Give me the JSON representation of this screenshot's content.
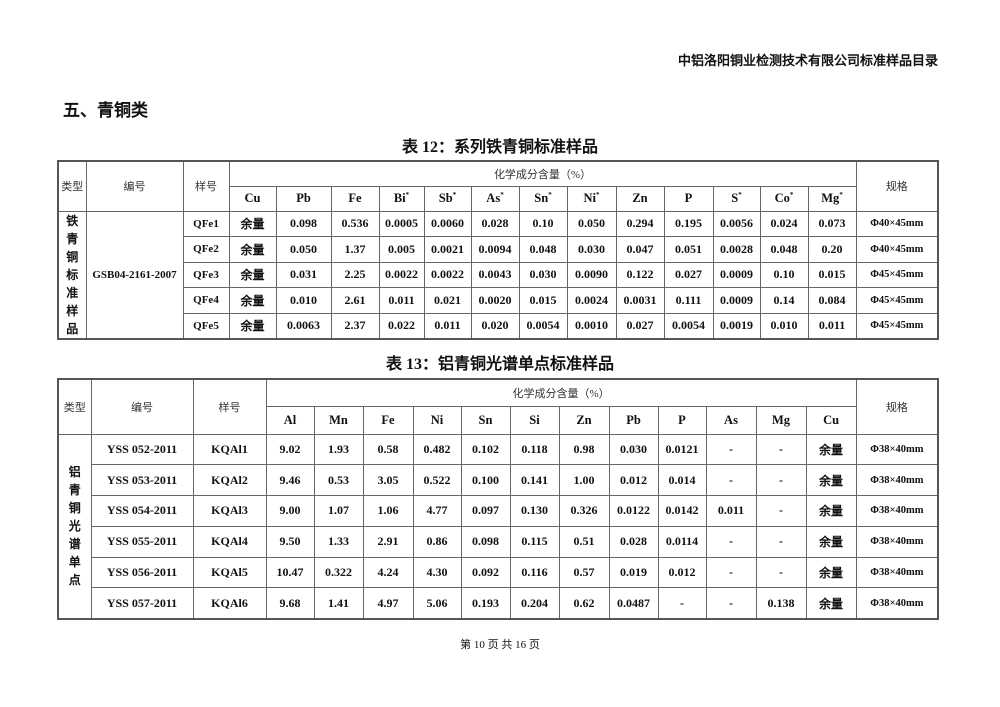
{
  "doc_header": "中铝洛阳铜业检测技术有限公司标准样品目录",
  "section_title": "五、青铜类",
  "table12": {
    "caption": "表 12：系列铁青铜标准样品",
    "h_type": "类型",
    "h_code": "编号",
    "h_sample": "样号",
    "h_group": "化学成分含量（%）",
    "h_spec": "规格",
    "elements": [
      {
        "el": "Cu",
        "mark": ""
      },
      {
        "el": "Pb",
        "mark": ""
      },
      {
        "el": "Fe",
        "mark": ""
      },
      {
        "el": "Bi",
        "mark": "*"
      },
      {
        "el": "Sb",
        "mark": "*"
      },
      {
        "el": "As",
        "mark": "*"
      },
      {
        "el": "Sn",
        "mark": "*"
      },
      {
        "el": "Ni",
        "mark": "*"
      },
      {
        "el": "Zn",
        "mark": ""
      },
      {
        "el": "P",
        "mark": ""
      },
      {
        "el": "S",
        "mark": "*"
      },
      {
        "el": "Co",
        "mark": "*"
      },
      {
        "el": "Mg",
        "mark": "*"
      }
    ],
    "type_label": "铁青铜标准样品",
    "code": "GSB04-2161-2007",
    "rows": [
      {
        "sample": "QFe1",
        "values": [
          "余量",
          "0.098",
          "0.536",
          "0.0005",
          "0.0060",
          "0.028",
          "0.10",
          "0.050",
          "0.294",
          "0.195",
          "0.0056",
          "0.024",
          "0.073"
        ],
        "spec": "Φ40×45mm"
      },
      {
        "sample": "QFe2",
        "values": [
          "余量",
          "0.050",
          "1.37",
          "0.005",
          "0.0021",
          "0.0094",
          "0.048",
          "0.030",
          "0.047",
          "0.051",
          "0.0028",
          "0.048",
          "0.20"
        ],
        "spec": "Φ40×45mm"
      },
      {
        "sample": "QFe3",
        "values": [
          "余量",
          "0.031",
          "2.25",
          "0.0022",
          "0.0022",
          "0.0043",
          "0.030",
          "0.0090",
          "0.122",
          "0.027",
          "0.0009",
          "0.10",
          "0.015"
        ],
        "spec": "Φ45×45mm"
      },
      {
        "sample": "QFe4",
        "values": [
          "余量",
          "0.010",
          "2.61",
          "0.011",
          "0.021",
          "0.0020",
          "0.015",
          "0.0024",
          "0.0031",
          "0.111",
          "0.0009",
          "0.14",
          "0.084"
        ],
        "spec": "Φ45×45mm"
      },
      {
        "sample": "QFe5",
        "values": [
          "余量",
          "0.0063",
          "2.37",
          "0.022",
          "0.011",
          "0.020",
          "0.0054",
          "0.0010",
          "0.027",
          "0.0054",
          "0.0019",
          "0.010",
          "0.011"
        ],
        "spec": "Φ45×45mm"
      }
    ]
  },
  "table13": {
    "caption": "表 13：铝青铜光谱单点标准样品",
    "h_type": "类型",
    "h_code": "编号",
    "h_sample": "样号",
    "h_group": "化学成分含量（%）",
    "h_spec": "规格",
    "elements": [
      {
        "el": "Al",
        "mark": ""
      },
      {
        "el": "Mn",
        "mark": ""
      },
      {
        "el": "Fe",
        "mark": ""
      },
      {
        "el": "Ni",
        "mark": ""
      },
      {
        "el": "Sn",
        "mark": ""
      },
      {
        "el": "Si",
        "mark": ""
      },
      {
        "el": "Zn",
        "mark": ""
      },
      {
        "el": "Pb",
        "mark": ""
      },
      {
        "el": "P",
        "mark": ""
      },
      {
        "el": "As",
        "mark": ""
      },
      {
        "el": "Mg",
        "mark": ""
      },
      {
        "el": "Cu",
        "mark": ""
      }
    ],
    "type_label": "铝青铜光谱单点",
    "rows": [
      {
        "code": "YSS 052-2011",
        "sample": "KQAl1",
        "values": [
          "9.02",
          "1.93",
          "0.58",
          "0.482",
          "0.102",
          "0.118",
          "0.98",
          "0.030",
          "0.0121",
          "-",
          "-",
          "余量"
        ],
        "spec": "Φ38×40mm"
      },
      {
        "code": "YSS 053-2011",
        "sample": "KQAl2",
        "values": [
          "9.46",
          "0.53",
          "3.05",
          "0.522",
          "0.100",
          "0.141",
          "1.00",
          "0.012",
          "0.014",
          "-",
          "-",
          "余量"
        ],
        "spec": "Φ38×40mm"
      },
      {
        "code": "YSS 054-2011",
        "sample": "KQAl3",
        "values": [
          "9.00",
          "1.07",
          "1.06",
          "4.77",
          "0.097",
          "0.130",
          "0.326",
          "0.0122",
          "0.0142",
          "0.011",
          "-",
          "余量"
        ],
        "spec": "Φ38×40mm"
      },
      {
        "code": "YSS 055-2011",
        "sample": "KQAl4",
        "values": [
          "9.50",
          "1.33",
          "2.91",
          "0.86",
          "0.098",
          "0.115",
          "0.51",
          "0.028",
          "0.0114",
          "-",
          "-",
          "余量"
        ],
        "spec": "Φ38×40mm"
      },
      {
        "code": "YSS 056-2011",
        "sample": "KQAl5",
        "values": [
          "10.47",
          "0.322",
          "4.24",
          "4.30",
          "0.092",
          "0.116",
          "0.57",
          "0.019",
          "0.012",
          "-",
          "-",
          "余量"
        ],
        "spec": "Φ38×40mm"
      },
      {
        "code": "YSS 057-2011",
        "sample": "KQAl6",
        "values": [
          "9.68",
          "1.41",
          "4.97",
          "5.06",
          "0.193",
          "0.204",
          "0.62",
          "0.0487",
          "-",
          "-",
          "0.138",
          "余量"
        ],
        "spec": "Φ38×40mm"
      }
    ]
  },
  "footer": "第 10 页 共 16 页"
}
